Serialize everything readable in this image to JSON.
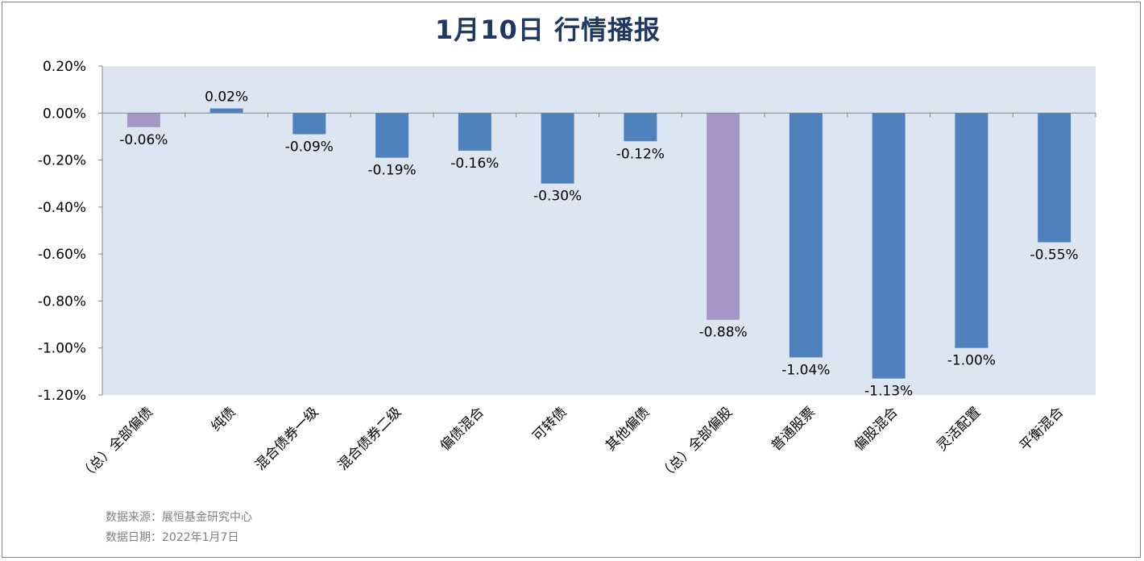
{
  "title": "1月10日  行情播报",
  "source_line": "数据来源：展恒基金研究中心",
  "date_line": "数据日期：2022年1月7日",
  "colors": {
    "plot_bg": "#dce6f2",
    "bar_blue": "#4f81bd",
    "bar_purple": "#a696c8",
    "title": "#1f3864"
  },
  "chart_data": {
    "type": "bar",
    "title": "1月10日  行情播报",
    "xlabel": "",
    "ylabel": "",
    "ylim": [
      -1.2,
      0.2
    ],
    "y_ticks": [
      0.2,
      0.0,
      -0.2,
      -0.4,
      -0.6,
      -0.8,
      -1.0,
      -1.2
    ],
    "y_tick_labels": [
      "0.20%",
      "0.00%",
      "-0.20%",
      "-0.40%",
      "-0.60%",
      "-0.80%",
      "-1.00%",
      "-1.20%"
    ],
    "grid": false,
    "legend": "none",
    "categories": [
      "（总）全部偏债",
      "纯债",
      "混合债券一级",
      "混合债券二级",
      "偏债混合",
      "可转债",
      "其他偏债",
      "（总）全部偏股",
      "普通股票",
      "偏股混合",
      "灵活配置",
      "平衡混合"
    ],
    "values": [
      -0.06,
      0.02,
      -0.09,
      -0.19,
      -0.16,
      -0.3,
      -0.12,
      -0.88,
      -1.04,
      -1.13,
      -1.0,
      -0.55
    ],
    "value_labels": [
      "-0.06%",
      "0.02%",
      "-0.09%",
      "-0.19%",
      "-0.16%",
      "-0.30%",
      "-0.12%",
      "-0.88%",
      "-1.04%",
      "-1.13%",
      "-1.00%",
      "-0.55%"
    ],
    "bar_colors": [
      "#a696c8",
      "#4f81bd",
      "#4f81bd",
      "#4f81bd",
      "#4f81bd",
      "#4f81bd",
      "#4f81bd",
      "#a696c8",
      "#4f81bd",
      "#4f81bd",
      "#4f81bd",
      "#4f81bd"
    ]
  }
}
